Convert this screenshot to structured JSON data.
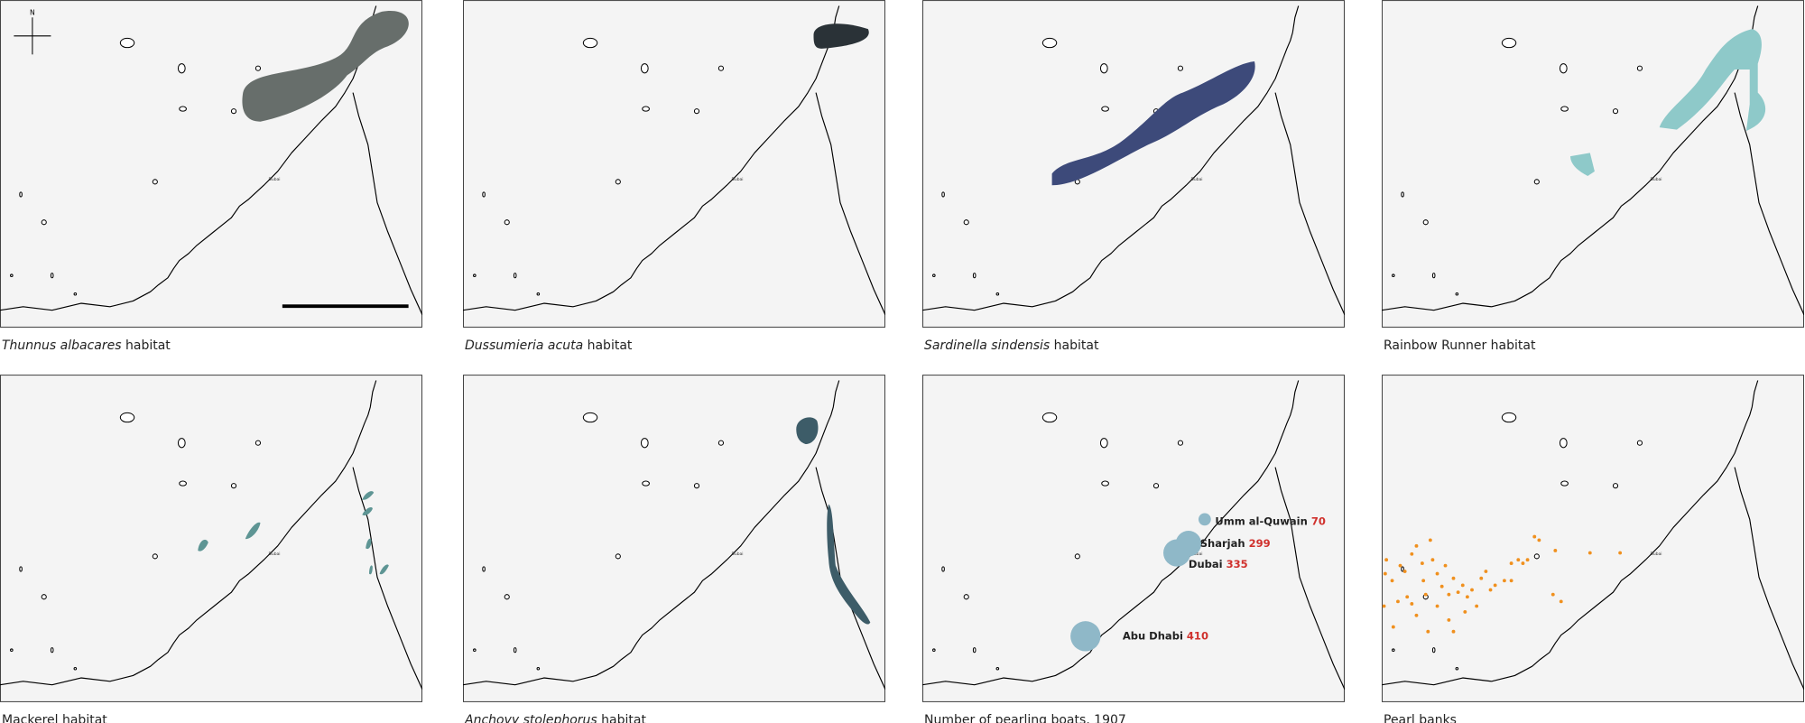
{
  "panels": [
    {
      "caption": [
        {
          "text": "Thunnus albacares",
          "italic": true
        },
        {
          "text": " habitat"
        }
      ]
    },
    {
      "caption": [
        {
          "text": "Dussumieria acuta",
          "italic": true
        },
        {
          "text": " habitat"
        }
      ]
    },
    {
      "caption": [
        {
          "text": "Sardinella sindensis",
          "italic": true
        },
        {
          "text": " habitat"
        }
      ]
    },
    {
      "caption": [
        {
          "text": "Rainbow Runner habitat"
        }
      ]
    },
    {
      "caption": [
        {
          "text": "Mackerel habitat"
        }
      ]
    },
    {
      "caption": [
        {
          "text": "Anchovy stolephorus",
          "italic": true
        },
        {
          "text": " habitat"
        }
      ]
    },
    {
      "caption": [
        {
          "text": "Number of pearling boats, 1907"
        }
      ],
      "cities": [
        {
          "name": "Umm al-Quwain",
          "boats": 70
        },
        {
          "name": "Sharjah",
          "boats": 299
        },
        {
          "name": "Dubai",
          "boats": 335
        },
        {
          "name": "Abu Dhabi",
          "boats": 410
        }
      ]
    },
    {
      "caption": [
        {
          "text": "Pearl banks"
        }
      ]
    }
  ],
  "compass": "N",
  "map_label": "Dubai"
}
